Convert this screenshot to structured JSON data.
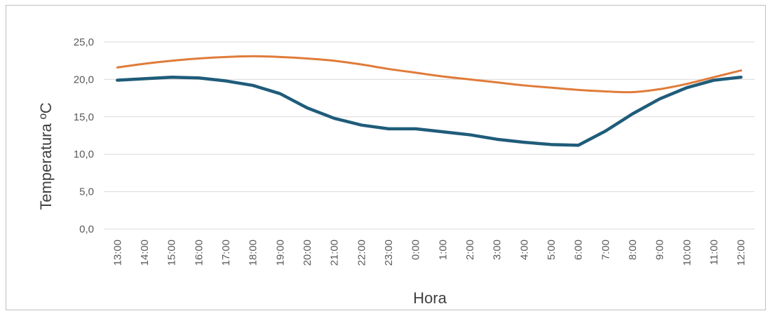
{
  "chart_data": {
    "type": "line",
    "title": "",
    "xlabel": "Hora",
    "ylabel": "Temperatura ºC",
    "ylim": [
      0,
      25
    ],
    "yticks": [
      0,
      5,
      10,
      15,
      20,
      25
    ],
    "ytick_labels": [
      "0,0",
      "5,0",
      "10,0",
      "15,0",
      "20,0",
      "25,0"
    ],
    "grid": true,
    "legend": "none",
    "categories": [
      "13:00",
      "14:00",
      "15:00",
      "16:00",
      "17:00",
      "18:00",
      "19:00",
      "20:00",
      "21:00",
      "22:00",
      "23:00",
      "0:00",
      "1:00",
      "2:00",
      "3:00",
      "4:00",
      "5:00",
      "6:00",
      "7:00",
      "8:00",
      "9:00",
      "10:00",
      "11:00",
      "12:00"
    ],
    "series": [
      {
        "color": "#e07b39",
        "smooth": true,
        "values": [
          21.6,
          22.1,
          22.5,
          22.8,
          23.0,
          23.1,
          23.0,
          22.8,
          22.5,
          22.0,
          21.4,
          20.9,
          20.4,
          20.0,
          19.6,
          19.2,
          18.9,
          18.6,
          18.4,
          18.3,
          18.7,
          19.4,
          20.3,
          21.2
        ]
      },
      {
        "color": "#1f5c7a",
        "smooth": false,
        "values": [
          19.9,
          20.1,
          20.3,
          20.2,
          19.8,
          19.2,
          18.1,
          16.2,
          14.8,
          13.9,
          13.4,
          13.4,
          13.0,
          12.6,
          12.0,
          11.6,
          11.3,
          11.2,
          13.1,
          15.4,
          17.4,
          18.9,
          19.9,
          20.3
        ]
      }
    ]
  }
}
